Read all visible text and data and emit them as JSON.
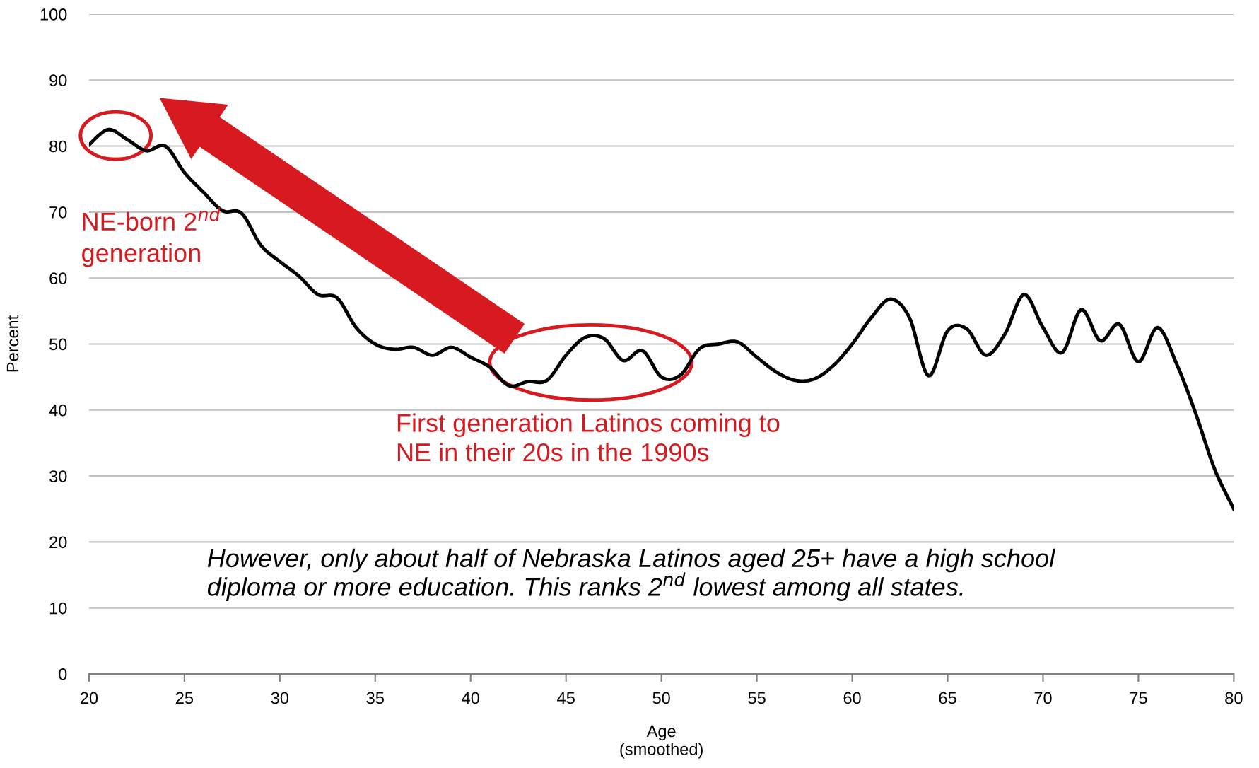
{
  "chart_data": {
    "type": "line",
    "xlabel": "Age\n(smoothed)",
    "ylabel": "Percent",
    "x": [
      20,
      21,
      22,
      23,
      24,
      25,
      26,
      27,
      28,
      29,
      30,
      31,
      32,
      33,
      34,
      35,
      36,
      37,
      38,
      39,
      40,
      41,
      42,
      43,
      44,
      45,
      46,
      47,
      48,
      49,
      50,
      51,
      52,
      53,
      54,
      55,
      56,
      57,
      58,
      59,
      60,
      61,
      62,
      63,
      64,
      65,
      66,
      67,
      68,
      69,
      70,
      71,
      72,
      73,
      74,
      75,
      76,
      77,
      78,
      79,
      80
    ],
    "series": [
      {
        "color": "#000000",
        "values": [
          80.2,
          82.5,
          81,
          79.3,
          80,
          76,
          73,
          70.2,
          69.8,
          65,
          62.5,
          60.3,
          57.5,
          57,
          52.5,
          50,
          49.2,
          49.5,
          48.3,
          49.5,
          48,
          46.5,
          43.7,
          44.3,
          44.5,
          48.3,
          51,
          50.8,
          47.5,
          49,
          45,
          45.3,
          49.3,
          50,
          50.3,
          48,
          45.8,
          44.5,
          44.7,
          46.7,
          50,
          54,
          56.8,
          54,
          45.2,
          52,
          52.3,
          48.3,
          51.5,
          57.5,
          52.5,
          48.7,
          55.2,
          50.5,
          53,
          47.3,
          52.5,
          47,
          39.5,
          31,
          25
        ]
      }
    ],
    "xlim": [
      20,
      80
    ],
    "xticks": [
      20,
      25,
      30,
      35,
      40,
      45,
      50,
      55,
      60,
      65,
      70,
      75,
      80
    ],
    "ylim": [
      0,
      100
    ],
    "yticks": [
      0,
      10,
      20,
      30,
      40,
      50,
      60,
      70,
      80,
      90,
      100
    ],
    "grid": "y",
    "legend": false,
    "marker": "none",
    "line_style": "solid",
    "annotations": [
      "NE-born 2$^{nd}$\ngeneration",
      "First generation Latinos coming to\nNE in their 20s in the 1990s",
      "However, only about half of Nebraska Latinos aged 25+ have a high school\ndiploma or more education. This ranks 2$^{nd}$ lowest among all states."
    ]
  }
}
